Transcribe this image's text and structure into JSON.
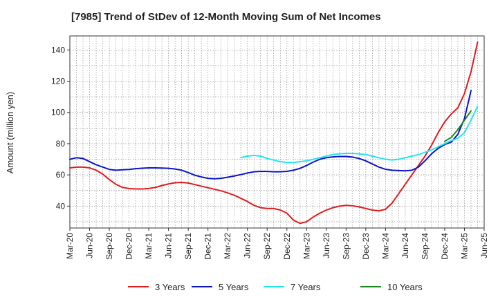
{
  "chart_data": {
    "type": "line",
    "title": "[7985]  Trend of StDev of 12-Month Moving Sum of Net Incomes",
    "xlabel": "",
    "ylabel": "Amount (million yen)",
    "ylim": [
      26,
      149
    ],
    "yticks": [
      40,
      60,
      80,
      100,
      120,
      140
    ],
    "x_tick_labels": [
      "Mar-20",
      "Jun-20",
      "Sep-20",
      "Dec-20",
      "Mar-21",
      "Jun-21",
      "Sep-21",
      "Dec-21",
      "Mar-22",
      "Jun-22",
      "Sep-22",
      "Dec-22",
      "Mar-23",
      "Jun-23",
      "Sep-23",
      "Dec-23",
      "Mar-24",
      "Jun-24",
      "Sep-24",
      "Dec-24",
      "Mar-25",
      "Jun-25"
    ],
    "x_start": "Mar-20",
    "grid": true,
    "legend_position": "bottom",
    "series": [
      {
        "name": "3 Years",
        "color": "#e31a1c",
        "start_index": 0,
        "values": [
          64.5,
          65,
          65,
          64.5,
          63,
          60.5,
          57,
          54,
          52,
          51.3,
          51,
          51,
          51.3,
          52,
          53.2,
          54.2,
          55,
          55.2,
          54.8,
          53.8,
          52.8,
          51.8,
          50.8,
          49.8,
          48.5,
          47,
          45,
          43,
          40.5,
          39,
          38.5,
          38.5,
          37.5,
          35.5,
          31,
          29,
          30,
          33,
          35.5,
          37.5,
          39,
          40,
          40.5,
          40.2,
          39.5,
          38.5,
          37.5,
          37,
          38,
          42,
          48,
          54,
          60,
          66,
          72,
          79,
          87,
          94,
          99,
          103,
          112,
          126,
          145
        ]
      },
      {
        "name": "5 Years",
        "color": "#0a14c8",
        "start_index": 0,
        "values": [
          70,
          71,
          70.5,
          68.5,
          66.5,
          65,
          63.5,
          63,
          63.3,
          63.5,
          64,
          64.3,
          64.5,
          64.5,
          64.4,
          64.2,
          63.8,
          63,
          61.5,
          59.8,
          58.7,
          57.8,
          57.5,
          57.8,
          58.5,
          59.3,
          60.2,
          61.2,
          62,
          62.3,
          62.2,
          62,
          62,
          62.3,
          63,
          64.2,
          66,
          68.2,
          70,
          71,
          71.5,
          71.8,
          71.8,
          71.4,
          70.5,
          69,
          67,
          65,
          63.6,
          63,
          62.8,
          62.6,
          63,
          65,
          69,
          73.5,
          77,
          79.5,
          81,
          86,
          96,
          114
        ]
      },
      {
        "name": "7 Years",
        "color": "#1ee6f0",
        "start_index": 26,
        "values": [
          71,
          72,
          72.5,
          72,
          70.5,
          69.5,
          68.5,
          68,
          68,
          68.5,
          69,
          70,
          71,
          72,
          73,
          73.5,
          73.8,
          73.8,
          73.5,
          73,
          72,
          71,
          70,
          69.5,
          70,
          71,
          72,
          73,
          74.5,
          76,
          78,
          80,
          82,
          83.5,
          87,
          95,
          104
        ]
      },
      {
        "name": "10 Years",
        "color": "#1a8a1a",
        "start_index": 57,
        "values": [
          81.5,
          84,
          89,
          95,
          101
        ]
      }
    ]
  }
}
